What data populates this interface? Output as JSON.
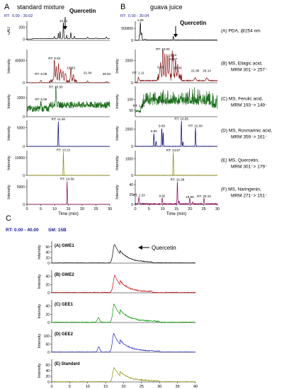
{
  "chart_data": [
    {
      "type": "line",
      "panel_letter": "A",
      "title": "standard mixture",
      "rt_range": "0.00 - 30.02",
      "arrow_label": "Quercetin",
      "xlabel": "Time (min)",
      "xlim": [
        0,
        30
      ],
      "xticks": [
        "0",
        "5",
        "10",
        "15",
        "20",
        "25",
        "30"
      ],
      "rows": [
        {
          "ylabel": "uAU",
          "yticks": [
            "200",
            "0"
          ],
          "ylim": [
            -20,
            300
          ],
          "color": "#000000",
          "trace": "pda_std",
          "peak_labels": [
            {
              "t": 13.21,
              "y": 270,
              "text": "13.21"
            }
          ]
        },
        {
          "ylabel": "Intensity",
          "yticks": [
            "40000",
            "0"
          ],
          "ylim": [
            0,
            60000
          ],
          "color": "#8b1a1a",
          "trace": "ella_std",
          "peak_labels": [
            {
              "t": 5.08,
              "y": 12000,
              "text": "RT: 5.08"
            },
            {
              "t": 9.94,
              "y": 40000,
              "text": "RT: 9.94"
            },
            {
              "t": 15.93,
              "y": 23000,
              "text": "15.93"
            },
            {
              "t": 21.94,
              "y": 14000,
              "text": "21.94"
            },
            {
              "t": 28.84,
              "y": 12000,
              "text": "28.84"
            }
          ]
        },
        {
          "ylabel": "Intensity",
          "yticks": [
            "1000",
            "0"
          ],
          "ylim": [
            0,
            1600
          ],
          "color": "#1a6b1a",
          "trace": "fer_std",
          "peak_labels": [
            {
              "t": 10.5,
              "y": 1450,
              "text": "RT: 10.50"
            },
            {
              "t": 5.09,
              "y": 800,
              "text": "RT: 5.09"
            }
          ]
        },
        {
          "ylabel": "Intensity",
          "yticks": [
            "5000",
            "0"
          ],
          "ylim": [
            0,
            7000
          ],
          "color": "#00007a",
          "trace": "ros_std",
          "peak_labels": [
            {
              "t": 11.36,
              "y": 6700,
              "text": "RT: 11.36"
            }
          ]
        },
        {
          "ylabel": "Intensity",
          "yticks": [
            "10000",
            "0"
          ],
          "ylim": [
            0,
            14000
          ],
          "color": "#8b8b00",
          "trace": "que_std",
          "peak_labels": [
            {
              "t": 13.21,
              "y": 13300,
              "text": "RT: 13.21"
            }
          ]
        },
        {
          "ylabel": "Intensity",
          "yticks": [
            "5000",
            "0"
          ],
          "ylim": [
            0,
            7000
          ],
          "color": "#8b005a",
          "trace": "nar_std",
          "peak_labels": [
            {
              "t": 14.56,
              "y": 6600,
              "text": "RT: 14.56"
            }
          ]
        }
      ]
    },
    {
      "type": "line",
      "panel_letter": "B",
      "title": "guava juice",
      "rt_range": "0.00 - 30.04",
      "arrow_label": "Quercetin",
      "xlabel": "Time (min)",
      "xlim": [
        0,
        30
      ],
      "xticks": [
        "0",
        "5",
        "10",
        "15",
        "20",
        "25",
        "30"
      ],
      "rows": [
        {
          "ylabel": "",
          "yticks": [
            "500000",
            "0"
          ],
          "ylim": [
            0,
            800000
          ],
          "color": "#000000",
          "trace": "pda_gj",
          "caption": "(A) PDA, @254 nm",
          "peak_labels": [
            {
              "t": 1.86,
              "y": 760000,
              "text": "1.86"
            }
          ]
        },
        {
          "ylabel": "Intensity",
          "yticks": [
            "2000",
            "0"
          ],
          "ylim": [
            0,
            3000
          ],
          "color": "#8b1a1a",
          "trace": "ella_gj",
          "caption": "(B) MS, Ellagic acid, MRM 301⁻> 257⁻",
          "peak_labels": [
            {
              "t": 10.05,
              "y": 2850,
              "text": "RT: 10.05"
            },
            {
              "t": 13.54,
              "y": 2300,
              "text": "13.54"
            },
            {
              "t": 13.87,
              "y": 1950,
              "text": "13.87"
            },
            {
              "t": 9.18,
              "y": 1200,
              "text": "9.18"
            },
            {
              "t": 15.49,
              "y": 1150,
              "text": "15.49"
            },
            {
              "t": 21.88,
              "y": 900,
              "text": "21.88"
            },
            {
              "t": 26.14,
              "y": 900,
              "text": "26.14"
            },
            {
              "t": 1.11,
              "y": 700,
              "text": "RT: 1.11"
            }
          ]
        },
        {
          "ylabel": "Intensity",
          "yticks": [
            "100",
            "50"
          ],
          "ylim": [
            20,
            160
          ],
          "color": "#1a6b1a",
          "trace": "fer_gj",
          "caption": "(C) MS, Ferulic acid, MRM 193⁻> 149⁻",
          "peak_labels": [
            {
              "t": 1.37,
              "y": 60,
              "text": "RT: 1.37"
            }
          ]
        },
        {
          "ylabel": "Intensity",
          "yticks": [
            "2000",
            "0"
          ],
          "ylim": [
            0,
            3000
          ],
          "color": "#00007a",
          "trace": "ros_gj",
          "caption": "(D) MS, Rosmarinic acid, MRM 359⁻> 161⁻",
          "peak_labels": [
            {
              "t": 16.85,
              "y": 2900,
              "text": "RT: 16.85"
            },
            {
              "t": 9.69,
              "y": 2100,
              "text": "9.69"
            },
            {
              "t": 22.0,
              "y": 2100,
              "text": "RT: 22.00"
            },
            {
              "t": 6.8,
              "y": 1500,
              "text": "6.80"
            }
          ]
        },
        {
          "ylabel": "Intensity",
          "yticks": [
            "1000",
            "0"
          ],
          "ylim": [
            0,
            1500
          ],
          "color": "#8b8b00",
          "trace": "que_gj",
          "caption": "(E) MS, Quercetin, MRM 301⁻> 179⁻",
          "peak_labels": [
            {
              "t": 13.87,
              "y": 1400,
              "text": "RT: 13.87"
            }
          ]
        },
        {
          "ylabel": "Intensity",
          "yticks": [
            "40",
            "20",
            "0"
          ],
          "ylim": [
            0,
            50
          ],
          "color": "#8b005a",
          "trace": "nar_gj",
          "caption": "(F) MS, Naringenin, MRM 271⁻> 151⁻",
          "peak_labels": [
            {
              "t": 15.38,
              "y": 46,
              "text": "RT: 15.38"
            },
            {
              "t": 1.33,
              "y": 14,
              "text": "RT: 1.33"
            },
            {
              "t": 9.82,
              "y": 13,
              "text": "9.82"
            },
            {
              "t": 19.89,
              "y": 11,
              "text": "19.89"
            },
            {
              "t": 25.1,
              "y": 12,
              "text": "RT: 25.10"
            }
          ]
        }
      ]
    },
    {
      "type": "line",
      "panel_letter": "C",
      "rt_range": "RT: 0.00 - 40.00",
      "sm": "SM: 15B",
      "arrow_label": "Quercetin",
      "xlabel": "Time (min)",
      "xlim": [
        0,
        40
      ],
      "xticks": [
        "0",
        "5",
        "10",
        "15",
        "20",
        "25",
        "30",
        "35",
        "40"
      ],
      "rows": [
        {
          "ylabel": "Intensity",
          "yticks": [
            "60",
            "40",
            "20",
            "0"
          ],
          "ylim": [
            0,
            80
          ],
          "color": "#000000",
          "trace": "gwe1",
          "name": "(A) GWE1"
        },
        {
          "ylabel": "Intensity",
          "yticks": [
            "40",
            "20",
            "0"
          ],
          "ylim": [
            0,
            55
          ],
          "color": "#cc0000",
          "trace": "gwe2",
          "name": "(B) GWE2"
        },
        {
          "ylabel": "Intensity",
          "yticks": [
            "40",
            "20",
            "0"
          ],
          "ylim": [
            0,
            55
          ],
          "color": "#00a000",
          "trace": "gee1",
          "name": "(C) GEE1"
        },
        {
          "ylabel": "Intensity",
          "yticks": [
            "100",
            "50",
            "0"
          ],
          "ylim": [
            0,
            140
          ],
          "color": "#2020c0",
          "trace": "gee2",
          "name": "(D) GEE2"
        },
        {
          "ylabel": "Intensity",
          "yticks": [
            "60",
            "40",
            "20",
            "0"
          ],
          "ylim": [
            0,
            80
          ],
          "color": "#8b8b00",
          "trace": "std",
          "name": "(E) Standard"
        }
      ]
    }
  ]
}
